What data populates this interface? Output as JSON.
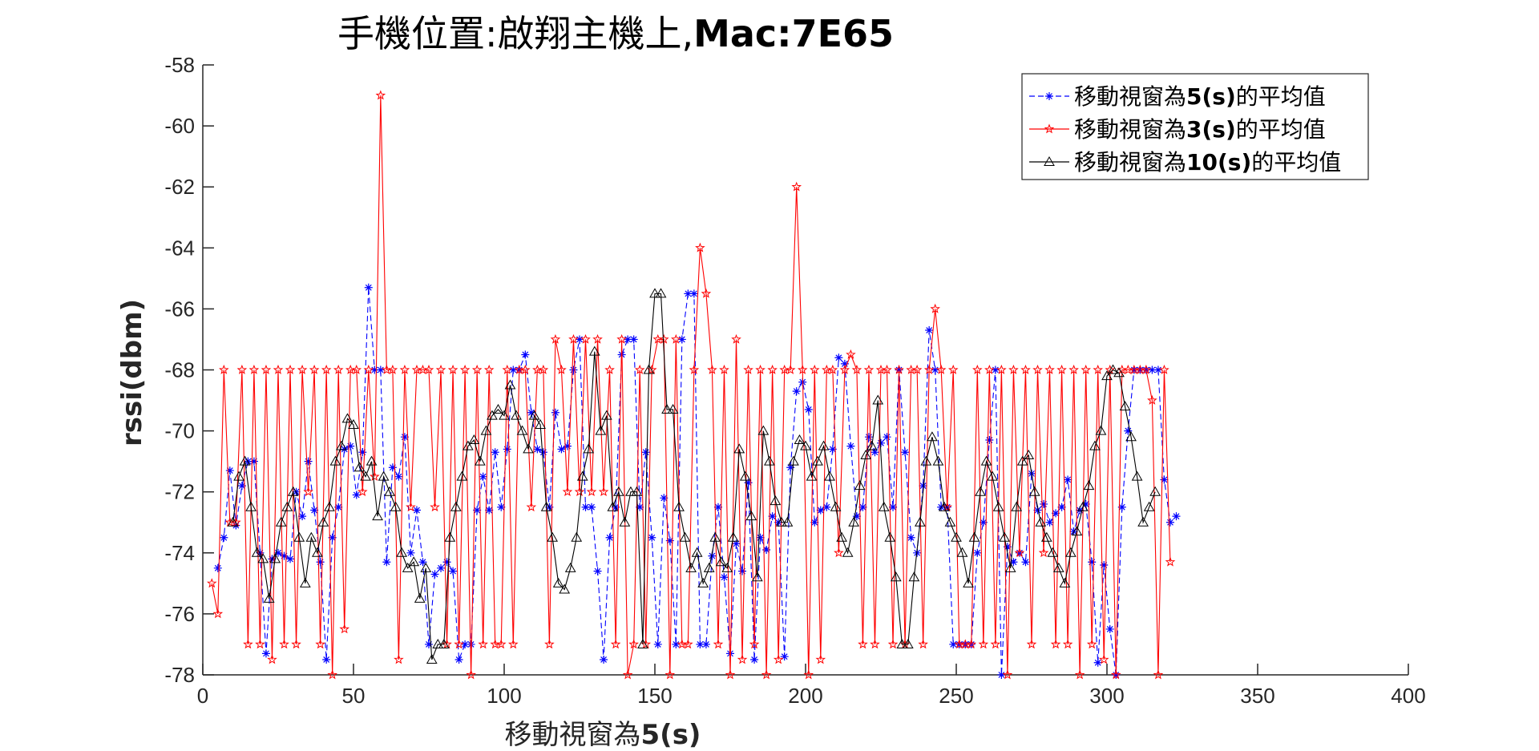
{
  "chart_data": {
    "type": "line",
    "title_part1": "手機位置:啟翔主機上,",
    "title_part2": "Mac:7E65",
    "xlabel_part1": "移動視窗為",
    "xlabel_part2": "5(s)",
    "ylabel": "rssi(dbm)",
    "xlim": [
      0,
      400
    ],
    "ylim": [
      -78,
      -58
    ],
    "x_ticks": [
      "0",
      "50",
      "100",
      "150",
      "200",
      "250",
      "300",
      "350",
      "400"
    ],
    "y_ticks": [
      "-58",
      "-60",
      "-62",
      "-64",
      "-66",
      "-68",
      "-70",
      "-72",
      "-74",
      "-76",
      "-78"
    ],
    "legend": [
      {
        "prefix": "移動視窗為",
        "bold": "5(s)",
        "suffix": "的平均值",
        "color": "#0000ff",
        "marker": "asterisk",
        "dash": "dashed"
      },
      {
        "prefix": "移動視窗為",
        "bold": "3(s)",
        "suffix": "的平均值",
        "color": "#ff0000",
        "marker": "star",
        "dash": "solid"
      },
      {
        "prefix": "移動視窗為",
        "bold": "10(s)",
        "suffix": "的平均值",
        "color": "#000000",
        "marker": "triangle",
        "dash": "solid"
      }
    ],
    "series": [
      {
        "name": "移動視窗為5(s)的平均值",
        "color": "#0000ff",
        "x_start": 5,
        "x_step": 2,
        "values": [
          -74.5,
          -73.5,
          -71.3,
          -73.1,
          -71.8,
          -71.0,
          -71.0,
          -74.0,
          -77.3,
          -74.2,
          -74.0,
          -74.1,
          -74.2,
          -72.0,
          -72.8,
          -71.0,
          -72.6,
          -74.3,
          -77.5,
          -73.5,
          -72.5,
          -70.6,
          -70.5,
          -72.1,
          -70.7,
          -65.3,
          -68.0,
          -68.0,
          -74.3,
          -71.2,
          -71.5,
          -70.2,
          -74.0,
          -72.6,
          -74.3,
          -77.0,
          -74.7,
          -74.5,
          -74.3,
          -74.6,
          -77.5,
          -77.0,
          -77.0,
          -72.6,
          -71.5,
          -72.6,
          -70.7,
          -72.5,
          -70.6,
          -68.0,
          -68.0,
          -67.5,
          -69.4,
          -70.6,
          -70.7,
          -72.5,
          -69.4,
          -70.6,
          -70.5,
          -68.0,
          -67.0,
          -72.5,
          -72.5,
          -74.6,
          -77.5,
          -73.5,
          -72.5,
          -67.5,
          -67.0,
          -67.0,
          -72.5,
          -70.7,
          -73.5,
          -77.0,
          -72.2,
          -73.6,
          -77.0,
          -67.0,
          -65.5,
          -65.5,
          -77.0,
          -77.0,
          -74.1,
          -72.5,
          -74.8,
          -77.3,
          -73.7,
          -74.6,
          -71.7,
          -77.5,
          -73.5,
          -73.9,
          -72.8,
          -73.0,
          -77.4,
          -71.2,
          -68.7,
          -68.4,
          -69.3,
          -73.0,
          -72.6,
          -72.5,
          -70.6,
          -67.6,
          -67.8,
          -70.5,
          -72.8,
          -72.5,
          -70.2,
          -70.7,
          -70.4,
          -70.2,
          -72.5,
          -68.0,
          -70.7,
          -73.5,
          -74.0,
          -71.8,
          -66.7,
          -68.0,
          -72.5,
          -72.5,
          -77.0,
          -77.0,
          -77.0,
          -77.0,
          -74.0,
          -73.0,
          -70.3,
          -68.0,
          -78.0,
          -73.8,
          -74.3,
          -74.0,
          -74.3,
          -71.4,
          -72.6,
          -72.4,
          -73.0,
          -72.7,
          -72.5,
          -71.6,
          -73.3,
          -72.6,
          -72.4,
          -74.3,
          -77.6,
          -74.4,
          -76.5,
          -78.0,
          -72.5,
          -70.0,
          -68.0,
          -68.0,
          -68.0,
          -68.0,
          -68.0,
          -71.6,
          -73.0,
          -72.8
        ]
      },
      {
        "name": "移動視窗為3(s)的平均值",
        "color": "#ff0000",
        "x_start": 3,
        "x_step": 2,
        "values": [
          -75.0,
          -76.0,
          -68.0,
          -73.0,
          -73.0,
          -68.0,
          -77.0,
          -68.0,
          -77.0,
          -68.0,
          -77.5,
          -68.0,
          -77.0,
          -68.0,
          -77.0,
          -68.0,
          -72.0,
          -68.0,
          -77.0,
          -68.0,
          -78.0,
          -68.0,
          -76.5,
          -68.0,
          -68.0,
          -72.0,
          -68.0,
          -71.5,
          -59.0,
          -68.0,
          -68.0,
          -77.5,
          -68.0,
          -72.5,
          -68.0,
          -68.0,
          -68.0,
          -72.5,
          -68.0,
          -77.0,
          -68.0,
          -77.0,
          -68.0,
          -78.0,
          -68.0,
          -77.0,
          -68.0,
          -77.0,
          -77.0,
          -68.0,
          -77.0,
          -68.0,
          -68.0,
          -72.5,
          -68.0,
          -68.0,
          -77.0,
          -67.0,
          -68.0,
          -72.0,
          -67.0,
          -72.0,
          -67.0,
          -72.0,
          -67.0,
          -72.0,
          -68.0,
          -77.0,
          -67.0,
          -78.0,
          -77.0,
          -68.0,
          -77.0,
          -68.0,
          -67.0,
          -67.0,
          -78.0,
          -67.0,
          -77.0,
          -77.0,
          -68.0,
          -64.0,
          -65.5,
          -68.0,
          -77.0,
          -68.0,
          -78.0,
          -67.0,
          -77.5,
          -68.0,
          -77.0,
          -68.0,
          -78.0,
          -68.0,
          -77.5,
          -68.0,
          -68.0,
          -62.0,
          -68.0,
          -78.0,
          -68.0,
          -77.5,
          -68.0,
          -68.0,
          -74.0,
          -68.0,
          -67.5,
          -68.0,
          -77.0,
          -68.0,
          -77.0,
          -68.0,
          -68.0,
          -77.0,
          -68.0,
          -77.0,
          -68.0,
          -68.0,
          -77.0,
          -68.0,
          -66.0,
          -68.0,
          -72.5,
          -68.0,
          -77.0,
          -77.0,
          -77.0,
          -68.0,
          -77.0,
          -68.0,
          -77.0,
          -68.0,
          -78.0,
          -68.0,
          -74.0,
          -68.0,
          -77.0,
          -68.0,
          -74.0,
          -68.0,
          -77.0,
          -68.0,
          -77.0,
          -68.0,
          -78.0,
          -68.0,
          -77.0,
          -68.0,
          -77.5,
          -68.0,
          -78.0,
          -68.0,
          -68.0,
          -68.0,
          -68.0,
          -68.0,
          -69.0,
          -78.0,
          -68.0,
          -74.3
        ]
      },
      {
        "name": "移動視窗為10(s)的平均值",
        "color": "#000000",
        "x_start": 10,
        "x_step": 2,
        "values": [
          -73.0,
          -71.5,
          -71.0,
          -72.5,
          -74.0,
          -74.2,
          -75.5,
          -74.2,
          -73.0,
          -72.5,
          -72.0,
          -73.5,
          -75.0,
          -73.5,
          -74.0,
          -73.0,
          -72.5,
          -71.0,
          -70.5,
          -69.6,
          -69.8,
          -71.2,
          -71.5,
          -71.0,
          -72.8,
          -71.5,
          -72.0,
          -72.5,
          -74.0,
          -74.5,
          -74.3,
          -75.5,
          -74.5,
          -77.5,
          -77.0,
          -77.0,
          -73.5,
          -72.5,
          -71.5,
          -70.5,
          -70.3,
          -71.0,
          -70.0,
          -69.5,
          -69.3,
          -69.5,
          -68.5,
          -69.5,
          -70.0,
          -70.6,
          -69.5,
          -69.8,
          -72.5,
          -73.5,
          -75.0,
          -75.2,
          -74.5,
          -73.5,
          -71.5,
          -70.6,
          -67.4,
          -70.0,
          -69.5,
          -72.5,
          -72.0,
          -73.0,
          -72.0,
          -72.0,
          -77.0,
          -68.0,
          -65.5,
          -65.5,
          -69.3,
          -69.3,
          -72.5,
          -73.5,
          -74.5,
          -74.0,
          -75.0,
          -74.5,
          -73.5,
          -74.3,
          -74.5,
          -73.5,
          -70.6,
          -71.5,
          -72.8,
          -74.8,
          -70.0,
          -71.0,
          -72.3,
          -73.0,
          -73.0,
          -71.0,
          -70.3,
          -70.5,
          -71.5,
          -71.0,
          -70.5,
          -71.5,
          -72.5,
          -73.5,
          -74.0,
          -73.0,
          -71.8,
          -70.8,
          -70.5,
          -69.0,
          -72.5,
          -73.5,
          -74.8,
          -77.0,
          -77.0,
          -74.8,
          -73.0,
          -71.0,
          -70.2,
          -71.0,
          -72.5,
          -73.0,
          -73.5,
          -74.0,
          -75.0,
          -73.5,
          -72.0,
          -71.0,
          -71.5,
          -72.5,
          -73.5,
          -74.5,
          -72.5,
          -71.0,
          -70.8,
          -72.0,
          -73.0,
          -73.5,
          -74.0,
          -74.5,
          -75.0,
          -74.0,
          -73.3,
          -72.5,
          -71.8,
          -70.5,
          -70.0,
          -68.2,
          -68.0,
          -68.1,
          -69.2,
          -70.2,
          -71.5,
          -73.0,
          -72.5,
          -72.0
        ]
      }
    ]
  }
}
